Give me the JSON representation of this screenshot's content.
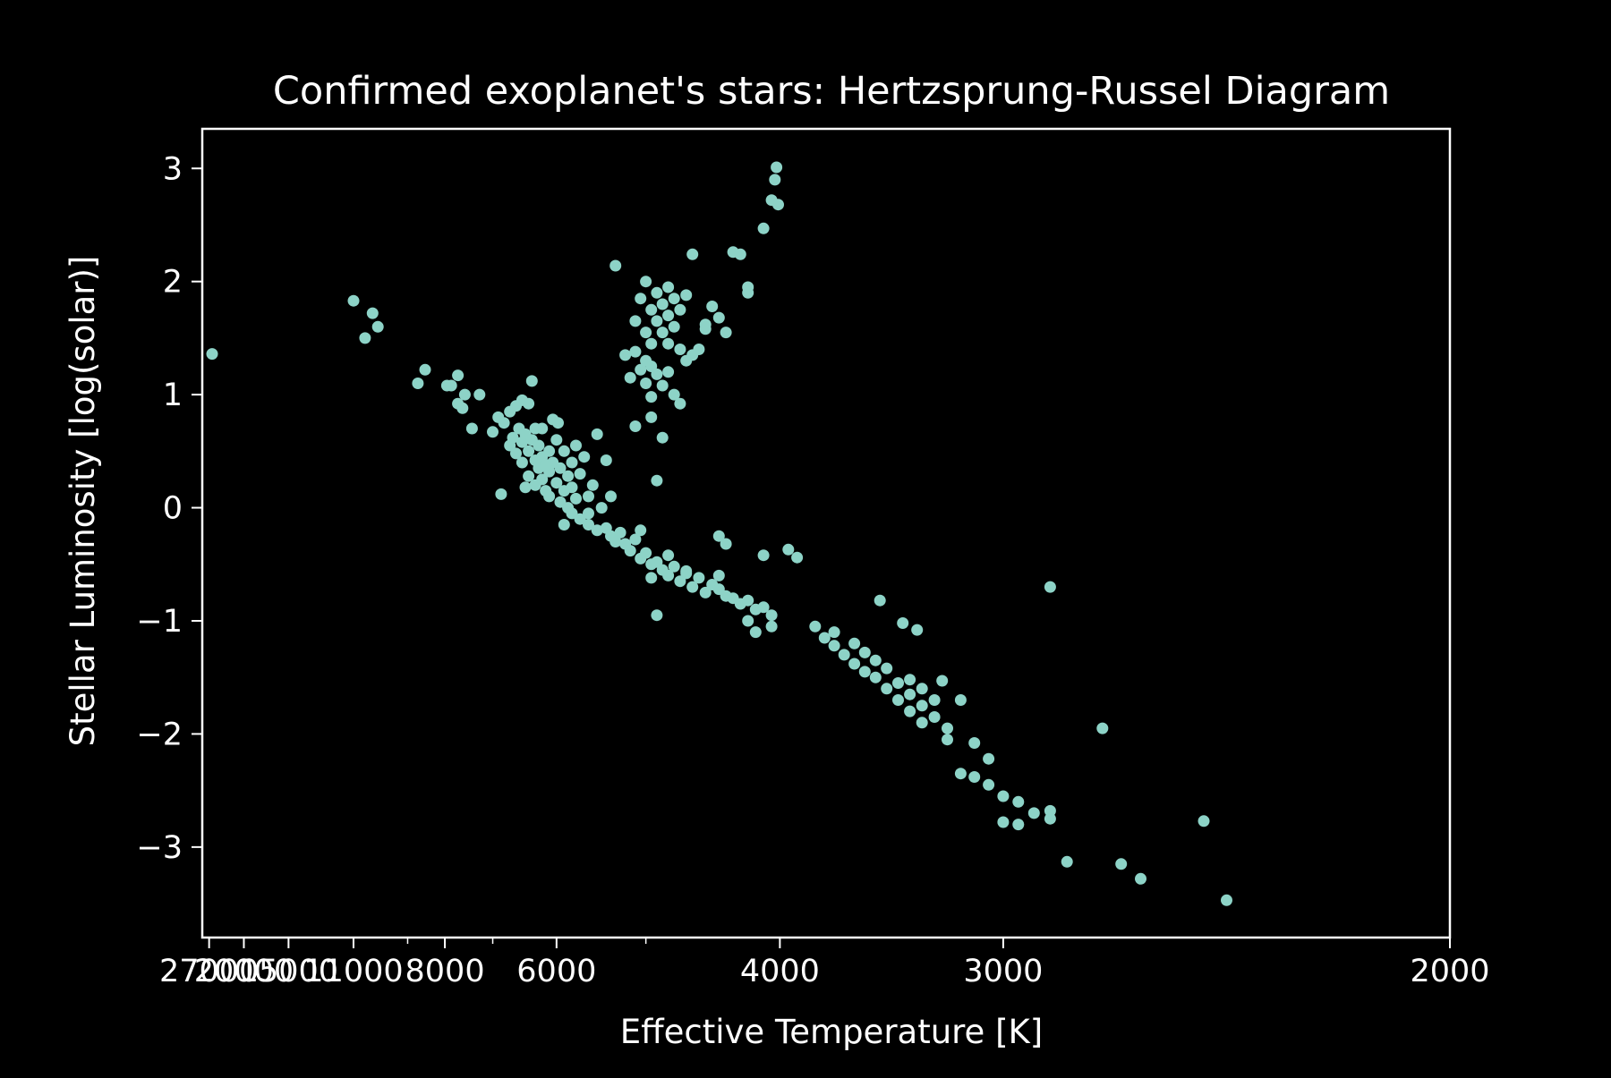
{
  "chart_data": {
    "type": "scatter",
    "title": "Confirmed exoplanet's stars: Hertzsprung-Russel Diagram",
    "xlabel": "Effective Temperature [K]",
    "ylabel": "Stellar Luminosity [log(solar)]",
    "x_scale": "reciprocal",
    "x_reversed": true,
    "xlim": [
      29000,
      2000
    ],
    "ylim": [
      -3.8,
      3.35
    ],
    "grid": false,
    "legend": "none",
    "x_ticks": [
      27000,
      20000,
      15000,
      11000,
      8000,
      6000,
      4000,
      3000,
      2000
    ],
    "x_tick_labels": [
      "27000",
      "20000",
      "15000",
      "11000",
      "8000",
      "6000",
      "4000",
      "3000",
      "2000"
    ],
    "x_minor_ticks": [
      9000,
      7000,
      5000
    ],
    "y_ticks": [
      3,
      2,
      1,
      0,
      -1,
      -2,
      -3
    ],
    "y_tick_labels": [
      "3",
      "2",
      "1",
      "0",
      "−1",
      "−2",
      "−3"
    ],
    "colors": {
      "background": "#000000",
      "axes": "#ffffff",
      "marker": "#8dd3c7"
    },
    "series": [
      {
        "points": [
          [
            26200,
            1.36
          ],
          [
            11000,
            1.83
          ],
          [
            10500,
            1.5
          ],
          [
            10200,
            1.72
          ],
          [
            10000,
            1.6
          ],
          [
            8700,
            1.1
          ],
          [
            8500,
            1.22
          ],
          [
            7950,
            1.08
          ],
          [
            7850,
            1.08
          ],
          [
            7700,
            1.17
          ],
          [
            7700,
            0.92
          ],
          [
            7600,
            0.88
          ],
          [
            7550,
            1.0
          ],
          [
            7400,
            0.7
          ],
          [
            7250,
            1.0
          ],
          [
            7000,
            0.67
          ],
          [
            6900,
            0.8
          ],
          [
            6800,
            0.75
          ],
          [
            6700,
            0.85
          ],
          [
            6600,
            0.9
          ],
          [
            6500,
            0.95
          ],
          [
            6400,
            0.92
          ],
          [
            6350,
            1.12
          ],
          [
            6300,
            0.7
          ],
          [
            6850,
            0.12
          ],
          [
            6700,
            0.55
          ],
          [
            6650,
            0.62
          ],
          [
            6600,
            0.48
          ],
          [
            6550,
            0.7
          ],
          [
            6500,
            0.58
          ],
          [
            6500,
            0.4
          ],
          [
            6450,
            0.65
          ],
          [
            6400,
            0.5
          ],
          [
            6400,
            0.28
          ],
          [
            6350,
            0.6
          ],
          [
            6300,
            0.42
          ],
          [
            6300,
            0.2
          ],
          [
            6250,
            0.55
          ],
          [
            6250,
            0.35
          ],
          [
            6200,
            0.45
          ],
          [
            6200,
            0.25
          ],
          [
            6150,
            0.15
          ],
          [
            6100,
            0.5
          ],
          [
            6100,
            0.32
          ],
          [
            6100,
            0.1
          ],
          [
            6050,
            0.4
          ],
          [
            6000,
            0.22
          ],
          [
            6000,
            0.6
          ],
          [
            5980,
            0.75
          ],
          [
            5950,
            0.05
          ],
          [
            5950,
            0.35
          ],
          [
            5900,
            0.15
          ],
          [
            5900,
            0.5
          ],
          [
            5850,
            0.0
          ],
          [
            5850,
            0.28
          ],
          [
            5800,
            -0.05
          ],
          [
            5800,
            0.18
          ],
          [
            5800,
            0.4
          ],
          [
            5750,
            0.08
          ],
          [
            5700,
            -0.1
          ],
          [
            5700,
            0.3
          ],
          [
            5650,
            0.45
          ],
          [
            5600,
            -0.15
          ],
          [
            5600,
            0.1
          ],
          [
            5500,
            0.65
          ],
          [
            5450,
            0.0
          ],
          [
            5400,
            0.42
          ],
          [
            5550,
            0.2
          ],
          [
            5350,
            0.1
          ],
          [
            5900,
            -0.15
          ],
          [
            5600,
            -0.05
          ],
          [
            6200,
            0.7
          ],
          [
            6050,
            0.78
          ],
          [
            6150,
            0.38
          ],
          [
            6450,
            0.18
          ],
          [
            5750,
            0.55
          ],
          [
            5500,
            -0.2
          ],
          [
            5400,
            -0.18
          ],
          [
            5350,
            -0.25
          ],
          [
            5300,
            -0.3
          ],
          [
            5250,
            -0.22
          ],
          [
            5200,
            -0.32
          ],
          [
            5150,
            -0.38
          ],
          [
            5100,
            -0.28
          ],
          [
            5050,
            -0.45
          ],
          [
            5000,
            -0.4
          ],
          [
            4950,
            -0.5
          ],
          [
            4900,
            -0.48
          ],
          [
            4850,
            -0.55
          ],
          [
            4800,
            -0.6
          ],
          [
            4750,
            -0.52
          ],
          [
            4700,
            -0.65
          ],
          [
            4650,
            -0.58
          ],
          [
            4600,
            -0.7
          ],
          [
            4550,
            -0.62
          ],
          [
            4500,
            -0.75
          ],
          [
            4450,
            -0.68
          ],
          [
            4400,
            -0.72
          ],
          [
            4350,
            -0.78
          ],
          [
            4300,
            -0.8
          ],
          [
            4250,
            -0.85
          ],
          [
            4200,
            -0.82
          ],
          [
            4150,
            -0.9
          ],
          [
            4100,
            -0.88
          ],
          [
            4050,
            -0.95
          ],
          [
            5050,
            -0.2
          ],
          [
            4950,
            -0.62
          ],
          [
            4800,
            -0.42
          ],
          [
            4650,
            -0.56
          ],
          [
            4400,
            -0.6
          ],
          [
            4200,
            -1.0
          ],
          [
            4150,
            -1.1
          ],
          [
            4050,
            -1.05
          ],
          [
            4900,
            -0.95
          ],
          [
            4400,
            -0.25
          ],
          [
            4350,
            -0.32
          ],
          [
            4100,
            -0.42
          ],
          [
            3950,
            -0.37
          ],
          [
            3900,
            -0.44
          ],
          [
            3800,
            -1.05
          ],
          [
            3750,
            -1.15
          ],
          [
            3700,
            -1.1
          ],
          [
            3700,
            -1.22
          ],
          [
            3650,
            -1.3
          ],
          [
            3600,
            -1.2
          ],
          [
            3600,
            -1.38
          ],
          [
            3550,
            -1.45
          ],
          [
            3550,
            -1.28
          ],
          [
            3500,
            -1.5
          ],
          [
            3500,
            -1.35
          ],
          [
            3450,
            -1.6
          ],
          [
            3450,
            -1.42
          ],
          [
            3400,
            -1.55
          ],
          [
            3400,
            -1.7
          ],
          [
            3350,
            -1.65
          ],
          [
            3350,
            -1.8
          ],
          [
            3300,
            -1.75
          ],
          [
            3300,
            -1.6
          ],
          [
            3250,
            -1.85
          ],
          [
            3250,
            -1.7
          ],
          [
            3200,
            -1.95
          ],
          [
            3200,
            -2.05
          ],
          [
            3350,
            -1.52
          ],
          [
            3300,
            -1.9
          ],
          [
            3150,
            -1.7
          ],
          [
            3480,
            -0.82
          ],
          [
            3380,
            -1.02
          ],
          [
            3320,
            -1.08
          ],
          [
            3220,
            -1.53
          ],
          [
            3100,
            -2.08
          ],
          [
            3050,
            -2.22
          ],
          [
            3150,
            -2.35
          ],
          [
            3100,
            -2.38
          ],
          [
            3050,
            -2.45
          ],
          [
            3000,
            -2.55
          ],
          [
            2950,
            -2.6
          ],
          [
            2900,
            -2.7
          ],
          [
            2850,
            -2.75
          ],
          [
            3000,
            -2.78
          ],
          [
            2950,
            -2.8
          ],
          [
            2850,
            -2.68
          ],
          [
            2800,
            -3.13
          ],
          [
            2650,
            -3.15
          ],
          [
            2600,
            -3.28
          ],
          [
            2450,
            -2.77
          ],
          [
            2400,
            -3.47
          ],
          [
            2850,
            -0.7
          ],
          [
            2700,
            -1.95
          ],
          [
            5300,
            2.14
          ],
          [
            5100,
            1.65
          ],
          [
            5050,
            1.85
          ],
          [
            5000,
            1.55
          ],
          [
            5000,
            2.0
          ],
          [
            4950,
            1.75
          ],
          [
            4950,
            1.45
          ],
          [
            4900,
            1.9
          ],
          [
            4900,
            1.65
          ],
          [
            4850,
            1.8
          ],
          [
            4850,
            1.55
          ],
          [
            4800,
            1.7
          ],
          [
            4800,
            1.95
          ],
          [
            4750,
            1.6
          ],
          [
            4750,
            1.85
          ],
          [
            4700,
            1.75
          ],
          [
            4700,
            1.4
          ],
          [
            4650,
            1.88
          ],
          [
            4600,
            2.24
          ],
          [
            4500,
            1.62
          ],
          [
            4450,
            1.78
          ],
          [
            4400,
            1.68
          ],
          [
            4350,
            1.55
          ],
          [
            4300,
            2.26
          ],
          [
            4250,
            2.24
          ],
          [
            4200,
            1.95
          ],
          [
            4200,
            1.9
          ],
          [
            4100,
            2.47
          ],
          [
            4050,
            2.72
          ],
          [
            4030,
            2.9
          ],
          [
            4020,
            3.01
          ],
          [
            4010,
            2.68
          ],
          [
            4550,
            1.4
          ],
          [
            4650,
            1.3
          ],
          [
            5200,
            1.35
          ],
          [
            5150,
            1.15
          ],
          [
            5100,
            1.38
          ],
          [
            5050,
            1.22
          ],
          [
            5000,
            1.1
          ],
          [
            4950,
            1.25
          ],
          [
            4900,
            1.18
          ],
          [
            4850,
            1.08
          ],
          [
            4800,
            1.2
          ],
          [
            4750,
            1.0
          ],
          [
            4700,
            0.92
          ],
          [
            5100,
            0.72
          ],
          [
            4950,
            0.8
          ],
          [
            4850,
            0.62
          ],
          [
            4900,
            0.24
          ],
          [
            4950,
            0.98
          ],
          [
            5000,
            1.3
          ],
          [
            4800,
            1.45
          ],
          [
            4600,
            1.35
          ],
          [
            4500,
            1.58
          ]
        ]
      }
    ]
  }
}
